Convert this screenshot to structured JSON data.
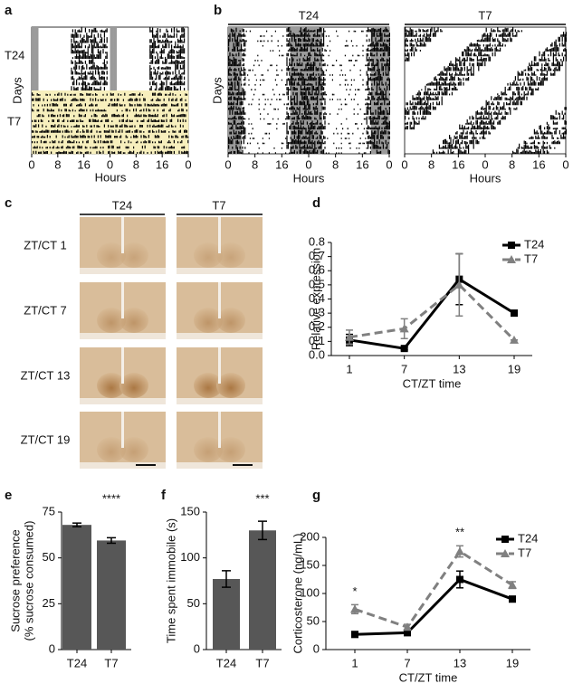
{
  "panel_letters": [
    "a",
    "b",
    "c",
    "d",
    "e",
    "f",
    "g"
  ],
  "actogram_a": {
    "groups": [
      "T24",
      "T7"
    ],
    "y_label": "Days",
    "x_label": "Hours",
    "x_ticks": [
      "0",
      "8",
      "16",
      "0",
      "8",
      "16",
      "0"
    ]
  },
  "actogram_b": {
    "groups": [
      "T24",
      "T7"
    ],
    "y_label": "Days",
    "x_label": "Hours",
    "x_ticks": [
      "0",
      "8",
      "16",
      "0",
      "8",
      "16",
      "0"
    ]
  },
  "histology_c": {
    "columns": [
      "T24",
      "T7"
    ],
    "rows": [
      "ZT/CT 1",
      "ZT/CT 7",
      "ZT/CT 13",
      "ZT/CT 19"
    ]
  },
  "chart_data": [
    {
      "type": "line",
      "x_label": "CT/ZT time",
      "y_label": "Relative expression",
      "categories": [
        "1",
        "7",
        "13",
        "19"
      ],
      "series": [
        {
          "name": "T24",
          "color": "#000000",
          "line_style": "solid",
          "marker": "square",
          "values": [
            0.11,
            0.05,
            0.54,
            0.3
          ],
          "errors": [
            0.04,
            0.01,
            0.18,
            0.02
          ]
        },
        {
          "name": "T7",
          "color": "#808080",
          "line_style": "dashed",
          "marker": "triangle",
          "values": [
            0.13,
            0.19,
            0.5,
            0.11
          ],
          "errors": [
            0.05,
            0.07,
            0.22,
            0.0
          ]
        }
      ],
      "ylim": [
        0,
        0.8
      ],
      "yticks": [
        {
          "value": 0,
          "label": "0.0"
        },
        0.1,
        0.2,
        0.3,
        0.4,
        0.5,
        0.6,
        0.7,
        0.8
      ],
      "legend": "upper right"
    },
    {
      "type": "bar",
      "y_label": [
        "Sucrose preference",
        "(% sucrose consumed)"
      ],
      "categories": [
        "T24",
        "T7"
      ],
      "values": [
        68,
        59.5
      ],
      "errors": [
        1,
        1.5
      ],
      "color": "#575757",
      "ylim": [
        0,
        75
      ],
      "yticks": [
        0,
        25,
        50,
        75
      ],
      "annotations": [
        {
          "text": "****",
          "category": "T7"
        }
      ]
    },
    {
      "type": "bar",
      "y_label": [
        "Time spent immobile (s)"
      ],
      "categories": [
        "T24",
        "T7"
      ],
      "values": [
        77,
        130
      ],
      "errors": [
        9,
        10
      ],
      "color": "#575757",
      "ylim": [
        0,
        150
      ],
      "yticks": [
        0,
        50,
        100,
        150
      ],
      "annotations": [
        {
          "text": "***",
          "category": "T7"
        }
      ]
    },
    {
      "type": "line",
      "x_label": "CT/ZT time",
      "y_label": "Corticosterone (ng/mL)",
      "categories": [
        "1",
        "7",
        "13",
        "19"
      ],
      "series": [
        {
          "name": "T24",
          "color": "#000000",
          "line_style": "solid",
          "marker": "square",
          "values": [
            27,
            30,
            125,
            90
          ],
          "errors": [
            5,
            4,
            15,
            5
          ]
        },
        {
          "name": "T7",
          "color": "#808080",
          "line_style": "dashed",
          "marker": "triangle",
          "values": [
            72,
            40,
            175,
            115
          ],
          "errors": [
            8,
            5,
            10,
            6
          ]
        }
      ],
      "ylim": [
        0,
        200
      ],
      "yticks": [
        0,
        50,
        100,
        150,
        200
      ],
      "legend": "upper right",
      "annotations": [
        {
          "text": "*",
          "category": "1"
        },
        {
          "text": "**",
          "category": "13"
        }
      ]
    }
  ]
}
